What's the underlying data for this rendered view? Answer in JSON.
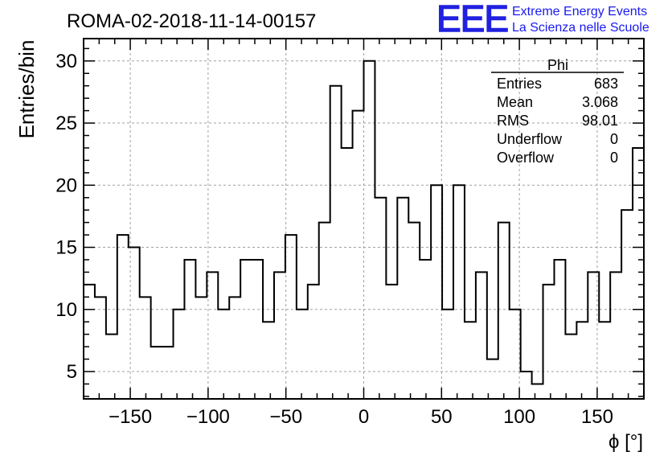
{
  "header": {
    "run_title": "ROMA-02-2018-11-14-00157",
    "logo_mark": "EEE",
    "logo_line1": "Extreme Energy Events",
    "logo_line2": "La Scienza nelle Scuole"
  },
  "colors": {
    "logo": "#2020e0",
    "axis": "#000000",
    "grid": "#a0a0a0"
  },
  "stats": {
    "title": "Phi",
    "rows": [
      {
        "label": "Entries",
        "value": "683"
      },
      {
        "label": "Mean",
        "value": "3.068"
      },
      {
        "label": "RMS",
        "value": "98.01"
      },
      {
        "label": "Underflow",
        "value": "0"
      },
      {
        "label": "Overflow",
        "value": "0"
      }
    ]
  },
  "chart_data": {
    "type": "histogram",
    "title": "ROMA-02-2018-11-14-00157",
    "xlabel": "ϕ [°]",
    "ylabel": "Entries/bin",
    "xlim": [
      -180,
      180
    ],
    "ylim": [
      2.8,
      31.8
    ],
    "bin_width": 7.2,
    "xticks": [
      -150,
      -100,
      -50,
      0,
      50,
      100,
      150
    ],
    "xtick_labels": [
      "−150",
      "−100",
      "−50",
      "0",
      "50",
      "100",
      "150"
    ],
    "yticks": [
      5,
      10,
      15,
      20,
      25,
      30
    ],
    "ytick_labels": [
      "5",
      "10",
      "15",
      "20",
      "25",
      "30"
    ],
    "grid": true,
    "values": [
      12,
      11,
      8,
      16,
      15,
      11,
      7,
      7,
      10,
      14,
      11,
      13,
      10,
      11,
      14,
      14,
      9,
      13,
      16,
      10,
      12,
      17,
      28,
      23,
      26,
      30,
      19,
      12,
      19,
      17,
      14,
      20,
      10,
      20,
      9,
      13,
      6,
      17,
      10,
      5,
      4,
      12,
      14,
      8,
      9,
      13,
      9,
      13,
      18,
      23
    ]
  }
}
